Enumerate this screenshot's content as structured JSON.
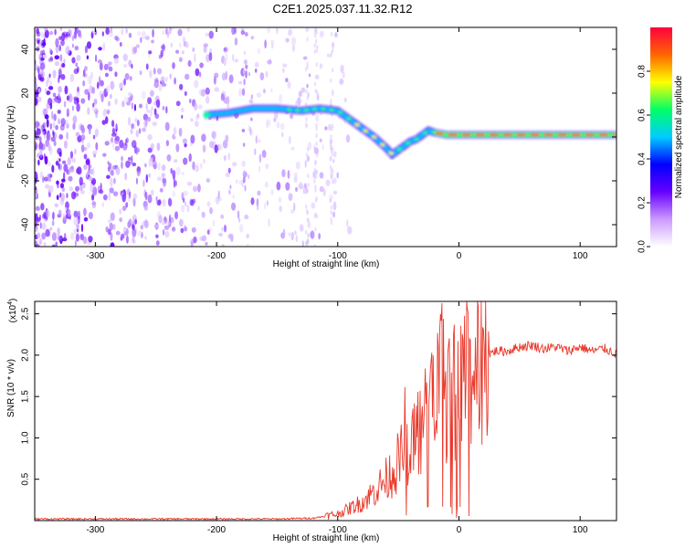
{
  "title": "C2E1.2025.037.11.32.R12",
  "chart_data": [
    {
      "type": "heatmap",
      "xlabel": "Height of straight line (km)",
      "ylabel": "Frequency (Hz)",
      "xlim": [
        -350,
        130
      ],
      "ylim": [
        -50,
        50
      ],
      "xticks": [
        -300,
        -200,
        -100,
        0,
        100
      ],
      "yticks": [
        -40,
        -20,
        0,
        20,
        40
      ],
      "colorbar": {
        "label": "Normalized spectral amplitude",
        "range": [
          0,
          1
        ],
        "ticks": [
          0.0,
          0.2,
          0.4,
          0.6,
          0.8
        ],
        "tick_labels": [
          "0.0",
          "0.2",
          "0.4",
          "0.6",
          "0.8"
        ],
        "colors": [
          "#ffffff",
          "#cc99ff",
          "#6600ff",
          "#0000ff",
          "#00ccff",
          "#00ff66",
          "#ffff00",
          "#ff6600",
          "#ff0040"
        ]
      },
      "ridge": {
        "x": [
          -210,
          -190,
          -170,
          -150,
          -130,
          -115,
          -100,
          -90,
          -80,
          -70,
          -60,
          -55,
          -50,
          -45,
          -40,
          -35,
          -30,
          -25,
          -20,
          -10,
          0,
          20,
          40,
          60,
          80,
          100,
          130
        ],
        "y": [
          10,
          11,
          13,
          13,
          12,
          13,
          12,
          8,
          4,
          0,
          -5,
          -8,
          -6,
          -4,
          -2,
          -1,
          1,
          3,
          2,
          1,
          1,
          1,
          1,
          1,
          1,
          1,
          1
        ]
      }
    },
    {
      "type": "line",
      "xlabel": "Height of straight line (km)",
      "ylabel": "SNR (10 * v/v)",
      "y_multiplier": "(x10",
      "y_multiplier_exp": "4",
      "y_multiplier_close": ")",
      "xlim": [
        -350,
        130
      ],
      "ylim": [
        0,
        2.65
      ],
      "xticks": [
        -300,
        -200,
        -100,
        0,
        100
      ],
      "yticks": [
        0.5,
        1.0,
        1.5,
        2.0,
        2.5
      ],
      "ytick_labels": [
        "0.5",
        "1.0",
        "1.5",
        "2.0",
        "2.5"
      ],
      "series": [
        {
          "color": "#e8392b",
          "x": [
            -350,
            -300,
            -250,
            -200,
            -150,
            -120,
            -100,
            -90,
            -80,
            -70,
            -60,
            -50,
            -40,
            -30,
            -20,
            -15,
            -10,
            0,
            10,
            20,
            30,
            40,
            50,
            60,
            70,
            80,
            90,
            100,
            110,
            120,
            130
          ],
          "y": [
            0.02,
            0.02,
            0.02,
            0.02,
            0.02,
            0.03,
            0.08,
            0.15,
            0.22,
            0.35,
            0.5,
            0.7,
            0.95,
            1.15,
            1.4,
            1.7,
            1.5,
            1.6,
            1.85,
            1.98,
            2.05,
            2.05,
            2.1,
            2.12,
            2.08,
            2.1,
            2.05,
            2.1,
            2.05,
            2.08,
            2.02
          ]
        }
      ]
    }
  ]
}
